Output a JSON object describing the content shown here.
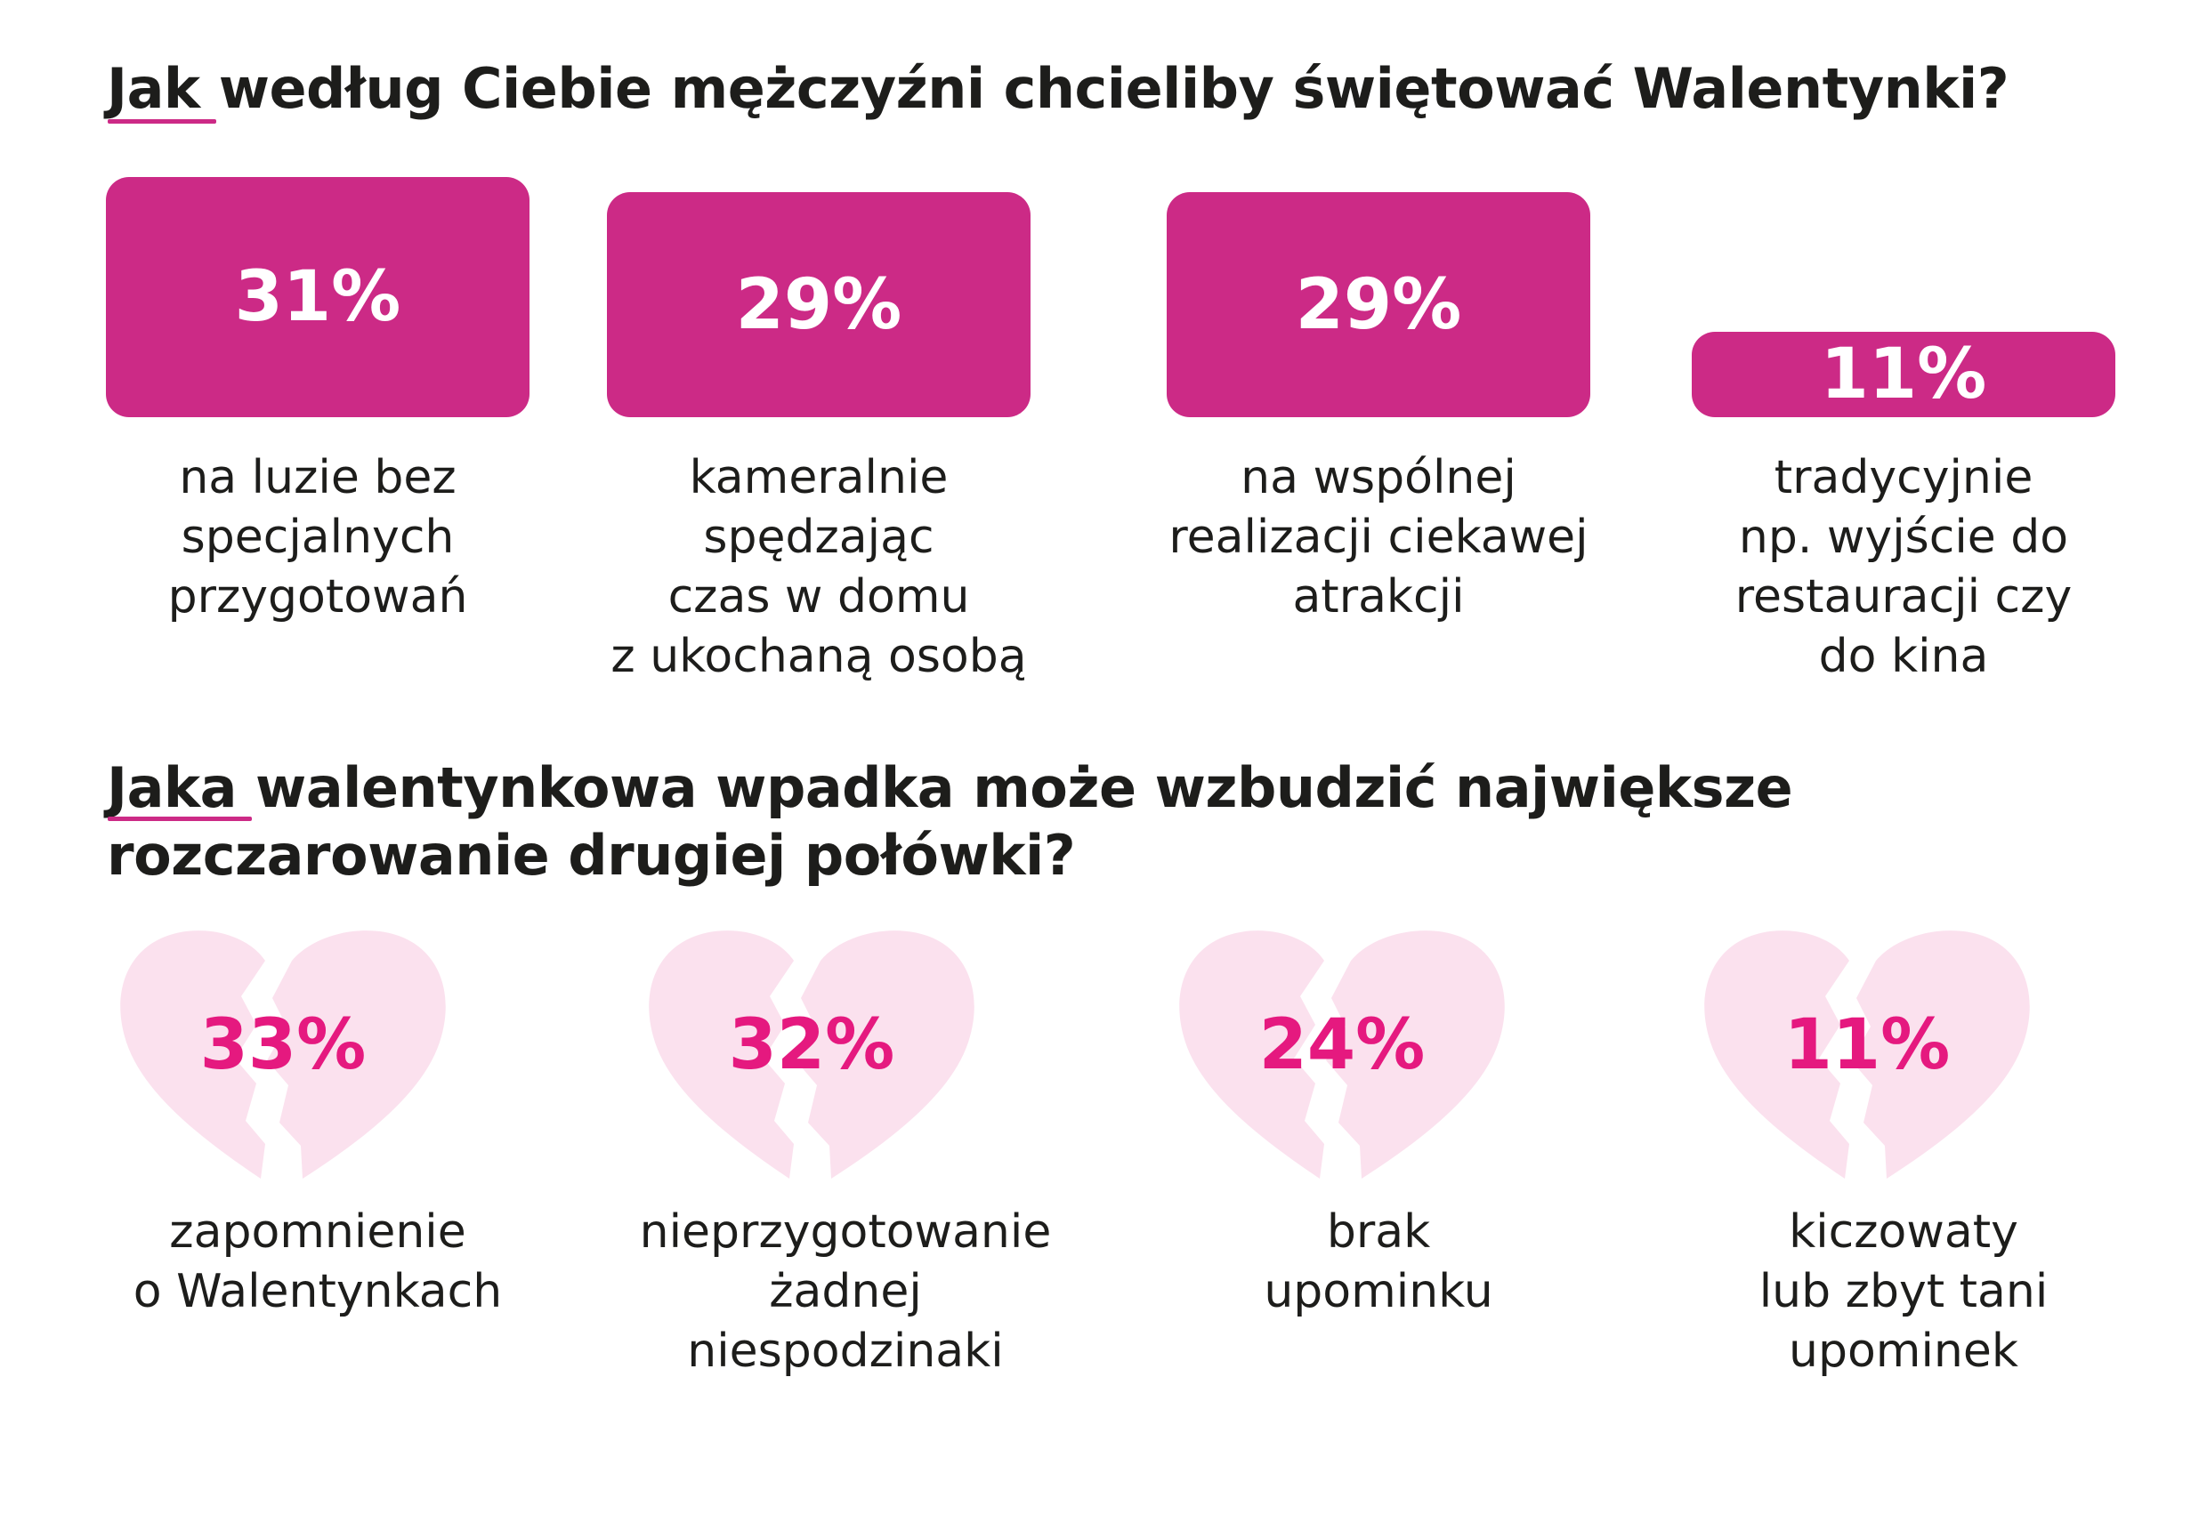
{
  "colors": {
    "accent": "#cc2a86",
    "heart_fill": "#fbe1ee",
    "heart_value": "#e5197f",
    "text": "#1d1d1b"
  },
  "q1": {
    "title": "Jak według Ciebie mężczyźni chcieliby świętować Walentynki?"
  },
  "q2": {
    "title": "Jaka walentynkowa wpadka może wzbudzić największe rozczarowanie drugiej połówki?"
  },
  "chart_data": [
    {
      "type": "bar",
      "title": "Jak według Ciebie mężczyźni chcieliby świętować Walentynki?",
      "categories": [
        "na luzie bez\nspecjalnych\nprzygotowań",
        "kameralnie\nspędzając\nczas w domu\nz ukochaną osobą",
        "na wspólnej\nrealizacji ciekawej\natrakcji",
        "tradycyjnie\nnp. wyjście do\nrestauracji czy\ndo kina"
      ],
      "values": [
        31,
        29,
        29,
        11
      ],
      "value_labels": [
        "31%",
        "29%",
        "29%",
        "11%"
      ],
      "unit": "%"
    },
    {
      "type": "bar",
      "title": "Jaka walentynkowa wpadka może wzbudzić największe rozczarowanie drugiej połówki?",
      "categories": [
        "zapomnienie\no Walentynkach",
        "nieprzygotowanie\nżadnej\nniespodzinaki",
        "brak\nupominku",
        "kiczowaty\nlub zbyt tani\nupominek"
      ],
      "values": [
        33,
        32,
        24,
        11
      ],
      "value_labels": [
        "33%",
        "32%",
        "24%",
        "11%"
      ],
      "unit": "%",
      "marker": "broken-heart-icon"
    }
  ]
}
